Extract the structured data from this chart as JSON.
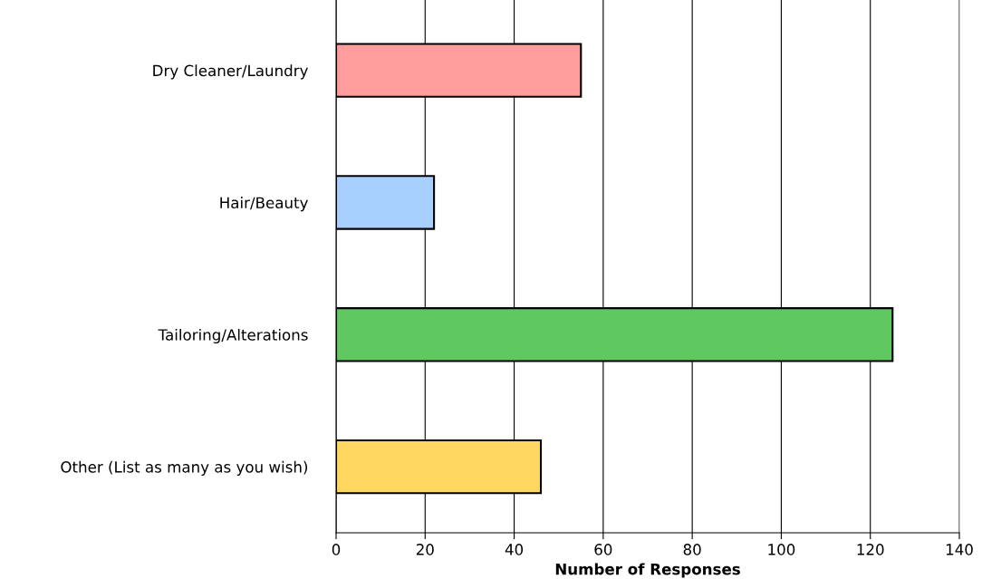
{
  "chart_data": {
    "type": "bar",
    "orientation": "horizontal",
    "xlabel": "Number of Responses",
    "categories": [
      "Dry Cleaner/Laundry",
      "Hair/Beauty",
      "Tailoring/Alterations",
      "Other (List as many as you wish)"
    ],
    "values": [
      55,
      22,
      125,
      46
    ],
    "colors": [
      "#ff9c9c",
      "#a8d0ff",
      "#60c860",
      "#ffd660"
    ],
    "xlim": [
      0,
      140
    ],
    "xticks": [
      0,
      20,
      40,
      60,
      80,
      100,
      120,
      140
    ],
    "grid": "x"
  }
}
